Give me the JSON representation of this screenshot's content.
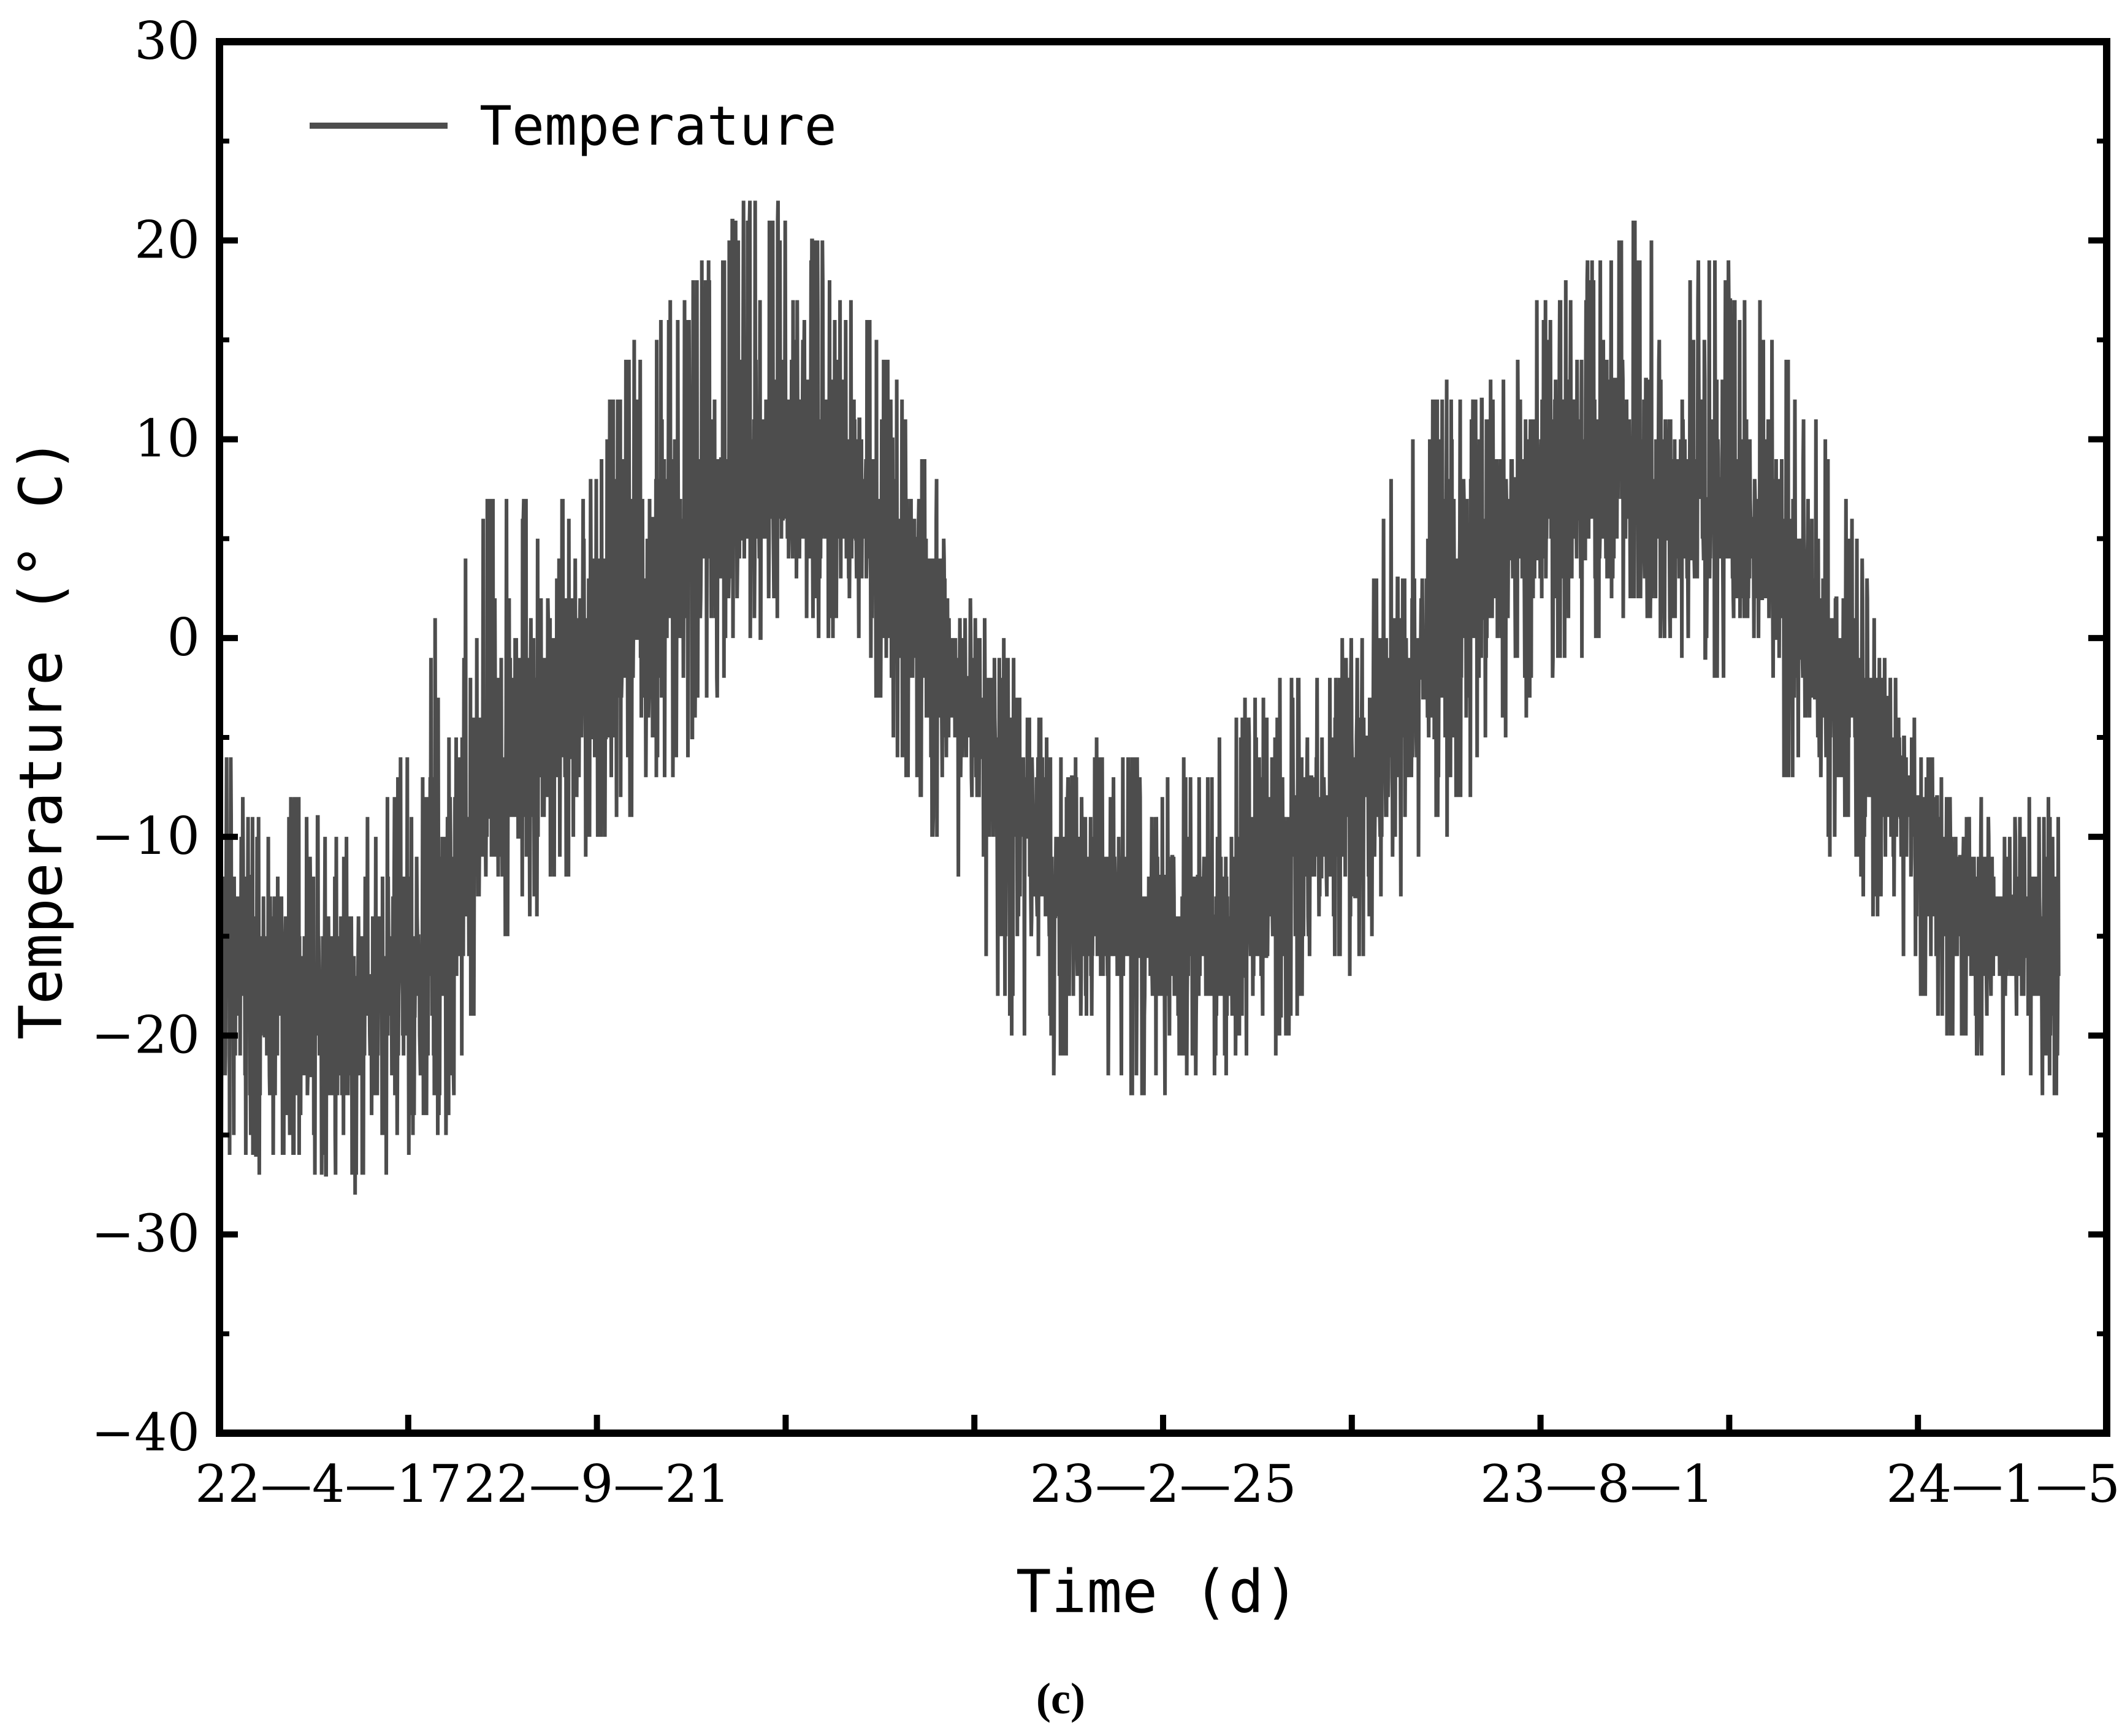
{
  "chart_data": {
    "type": "line",
    "xlabel": "Time (d)",
    "ylabel": "Temperature (° C)",
    "ylim": [
      -40,
      30
    ],
    "yticks": [
      30,
      20,
      10,
      0,
      -10,
      -20,
      -30,
      -40
    ],
    "xlim": [
      "2022-04-17",
      "2024-01-05"
    ],
    "xtick_labels": [
      "22—4—17",
      "22—9—21",
      "23—2—25",
      "23—8—1",
      "24—1—5"
    ],
    "legend_position": "top-left",
    "grid": false,
    "series": [
      {
        "name": "Temperature",
        "color": "#4d4d4d",
        "x": [
          "2022-04-17",
          "2022-05-02",
          "2022-05-17",
          "2022-06-01",
          "2022-06-16",
          "2022-07-01",
          "2022-07-16",
          "2022-08-01",
          "2022-08-16",
          "2022-09-01",
          "2022-09-21",
          "2022-10-06",
          "2022-10-21",
          "2022-11-05",
          "2022-11-20",
          "2022-12-05",
          "2022-12-20",
          "2023-01-05",
          "2023-01-20",
          "2023-02-05",
          "2023-02-25",
          "2023-03-15",
          "2023-04-01",
          "2023-04-15",
          "2023-05-01",
          "2023-05-15",
          "2023-06-01",
          "2023-06-15",
          "2023-07-01",
          "2023-07-15",
          "2023-08-01",
          "2023-08-15",
          "2023-09-01",
          "2023-09-15",
          "2023-10-01",
          "2023-10-15",
          "2023-11-01",
          "2023-11-15",
          "2023-12-01",
          "2023-12-15",
          "2024-01-05",
          "2024-01-20"
        ],
        "mean": [
          -14,
          -18,
          -19,
          -18,
          -17,
          -14,
          -8,
          -4,
          -2,
          1,
          5,
          7,
          8,
          8,
          6,
          3,
          -3,
          -8,
          -12,
          -14,
          -15,
          -15,
          -13,
          -10,
          -7,
          -3,
          1,
          5,
          7,
          8,
          8,
          7,
          6,
          4,
          0,
          -4,
          -8,
          -12,
          -15,
          -16,
          -17,
          -17
        ],
        "upper": [
          -4,
          -9,
          -7,
          -10,
          -6,
          3,
          8,
          7,
          8,
          15,
          18,
          22,
          22,
          20,
          16,
          12,
          2,
          0,
          -6,
          -5,
          -7,
          -5,
          -2,
          -1,
          0,
          10,
          13,
          13,
          17,
          19,
          21,
          19,
          19,
          16,
          11,
          5,
          -4,
          -7,
          -9,
          -8,
          -9,
          -8
        ],
        "lower": [
          -26,
          -27,
          -27,
          -28,
          -26,
          -25,
          -17,
          -14,
          -12,
          -9,
          -6,
          -2,
          1,
          0,
          -3,
          -9,
          -13,
          -20,
          -22,
          -23,
          -23,
          -23,
          -22,
          -18,
          -17,
          -13,
          -10,
          -6,
          -3,
          -1,
          1,
          -1,
          -3,
          -5,
          -11,
          -13,
          -18,
          -21,
          -23,
          -23,
          -24,
          -24
        ]
      }
    ]
  },
  "caption": "(c)"
}
